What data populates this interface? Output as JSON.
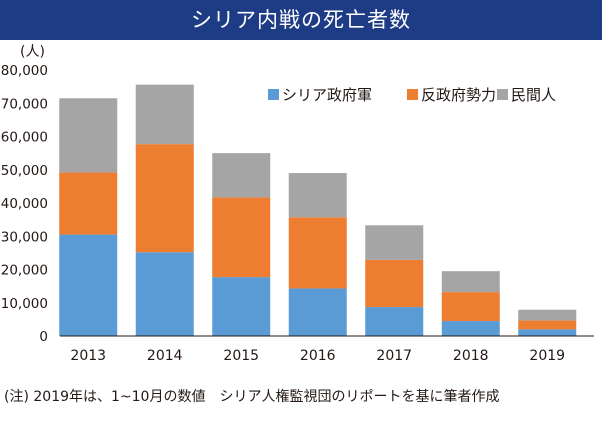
{
  "colors": {
    "title_bg": "#1e3c86",
    "title_text": "#ffffff",
    "government": "#5b9bd5",
    "opposition": "#ed7d31",
    "civilians": "#a5a5a5"
  },
  "footnote": "(注) 2019年は、1~10月の数値　シリア人権監視団のリポートを基に筆者作成",
  "chart_data": {
    "type": "bar",
    "stacked": true,
    "title": "シリア内戦の死亡者数",
    "ylabel": "(人)",
    "xlabel": "",
    "categories": [
      "2013",
      "2014",
      "2015",
      "2016",
      "2017",
      "2018",
      "2019"
    ],
    "series": [
      {
        "name": "シリア政府軍",
        "color": "#5b9bd5",
        "values": [
          30500,
          25200,
          17700,
          14300,
          8700,
          4500,
          2000
        ]
      },
      {
        "name": "反政府勢力",
        "color": "#ed7d31",
        "values": [
          18700,
          32500,
          24000,
          21400,
          14200,
          8700,
          2700
        ]
      },
      {
        "name": "民間人",
        "color": "#a5a5a5",
        "values": [
          22300,
          17900,
          13300,
          13300,
          10400,
          6300,
          3200
        ]
      }
    ],
    "ylim": [
      0,
      80000
    ],
    "yticks": [
      "0",
      "10,000",
      "20,000",
      "30,000",
      "40,000",
      "50,000",
      "60,000",
      "70,000",
      "80,000"
    ],
    "grid": false,
    "legend_position": "top-right"
  }
}
